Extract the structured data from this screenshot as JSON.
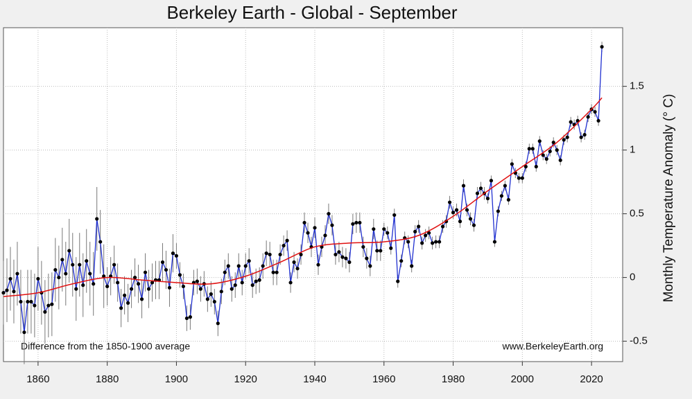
{
  "chart_data": {
    "type": "line",
    "title": "Berkeley Earth - Global - September",
    "y_label": "Monthly Temperature Anomaly (° C)",
    "annotations": [
      "Difference from the 1850-1900 average",
      "www.BerkeleyEarth.org"
    ],
    "xlim": [
      1850,
      2029
    ],
    "ylim": [
      -0.66,
      1.96
    ],
    "xticks": [
      1860,
      1880,
      1900,
      1920,
      1940,
      1960,
      1980,
      2000,
      2020
    ],
    "yticks": [
      -0.5,
      0,
      0.5,
      1,
      1.5
    ],
    "grid": true,
    "series": [
      {
        "color": "#1f2fd0",
        "marker_color": "#000000",
        "error_color": "#777777",
        "x": [
          1850,
          1851,
          1852,
          1853,
          1854,
          1855,
          1856,
          1857,
          1858,
          1859,
          1860,
          1861,
          1862,
          1863,
          1864,
          1865,
          1866,
          1867,
          1868,
          1869,
          1870,
          1871,
          1872,
          1873,
          1874,
          1875,
          1876,
          1877,
          1878,
          1879,
          1880,
          1881,
          1882,
          1883,
          1884,
          1885,
          1886,
          1887,
          1888,
          1889,
          1890,
          1891,
          1892,
          1893,
          1894,
          1895,
          1896,
          1897,
          1898,
          1899,
          1900,
          1901,
          1902,
          1903,
          1904,
          1905,
          1906,
          1907,
          1908,
          1909,
          1910,
          1911,
          1912,
          1913,
          1914,
          1915,
          1916,
          1917,
          1918,
          1919,
          1920,
          1921,
          1922,
          1923,
          1924,
          1925,
          1926,
          1927,
          1928,
          1929,
          1930,
          1931,
          1932,
          1933,
          1934,
          1935,
          1936,
          1937,
          1938,
          1939,
          1940,
          1941,
          1942,
          1943,
          1944,
          1945,
          1946,
          1947,
          1948,
          1949,
          1950,
          1951,
          1952,
          1953,
          1954,
          1955,
          1956,
          1957,
          1958,
          1959,
          1960,
          1961,
          1962,
          1963,
          1964,
          1965,
          1966,
          1967,
          1968,
          1969,
          1970,
          1971,
          1972,
          1973,
          1974,
          1975,
          1976,
          1977,
          1978,
          1979,
          1980,
          1981,
          1982,
          1983,
          1984,
          1985,
          1986,
          1987,
          1988,
          1989,
          1990,
          1991,
          1992,
          1993,
          1994,
          1995,
          1996,
          1997,
          1998,
          1999,
          2000,
          2001,
          2002,
          2003,
          2004,
          2005,
          2006,
          2007,
          2008,
          2009,
          2010,
          2011,
          2012,
          2013,
          2014,
          2015,
          2016,
          2017,
          2018,
          2019,
          2020,
          2021,
          2022,
          2023
        ],
        "values": [
          -0.12,
          -0.1,
          -0.01,
          -0.11,
          0.03,
          -0.19,
          -0.43,
          -0.19,
          -0.19,
          -0.22,
          -0.01,
          -0.12,
          -0.27,
          -0.22,
          -0.21,
          0.06,
          0.0,
          0.14,
          0.03,
          0.21,
          0.1,
          -0.09,
          0.1,
          -0.06,
          0.13,
          0.03,
          -0.05,
          0.46,
          0.28,
          0.01,
          -0.07,
          0.01,
          0.1,
          -0.04,
          -0.24,
          -0.14,
          -0.2,
          -0.09,
          0.0,
          -0.05,
          -0.17,
          0.04,
          -0.09,
          -0.04,
          -0.02,
          -0.02,
          0.12,
          0.06,
          -0.08,
          0.19,
          0.17,
          0.02,
          -0.07,
          -0.32,
          -0.31,
          -0.04,
          -0.03,
          -0.09,
          -0.05,
          -0.17,
          -0.13,
          -0.19,
          -0.36,
          -0.11,
          0.04,
          0.09,
          -0.09,
          -0.06,
          0.09,
          -0.04,
          0.09,
          0.13,
          -0.06,
          -0.03,
          -0.02,
          0.09,
          0.19,
          0.18,
          0.04,
          0.04,
          0.18,
          0.25,
          0.29,
          -0.04,
          0.12,
          0.07,
          0.18,
          0.43,
          0.35,
          0.24,
          0.39,
          0.1,
          0.24,
          0.33,
          0.5,
          0.41,
          0.18,
          0.2,
          0.16,
          0.15,
          0.12,
          0.42,
          0.43,
          0.43,
          0.24,
          0.15,
          0.09,
          0.38,
          0.21,
          0.21,
          0.38,
          0.35,
          0.23,
          0.49,
          -0.03,
          0.13,
          0.31,
          0.28,
          0.09,
          0.36,
          0.4,
          0.27,
          0.33,
          0.35,
          0.27,
          0.28,
          0.28,
          0.4,
          0.44,
          0.59,
          0.51,
          0.53,
          0.44,
          0.72,
          0.53,
          0.46,
          0.41,
          0.66,
          0.7,
          0.66,
          0.62,
          0.76,
          0.28,
          0.52,
          0.64,
          0.72,
          0.61,
          0.89,
          0.82,
          0.78,
          0.78,
          0.87,
          1.01,
          1.01,
          0.87,
          1.07,
          0.96,
          0.93,
          0.99,
          1.06,
          1.0,
          0.92,
          1.08,
          1.1,
          1.22,
          1.2,
          1.23,
          1.1,
          1.12,
          1.26,
          1.32,
          1.3,
          1.23,
          1.81
        ],
        "errors": [
          0.25,
          0.25,
          0.25,
          0.25,
          0.25,
          0.25,
          0.25,
          0.25,
          0.25,
          0.25,
          0.25,
          0.25,
          0.25,
          0.25,
          0.25,
          0.25,
          0.25,
          0.25,
          0.25,
          0.25,
          0.25,
          0.25,
          0.25,
          0.25,
          0.25,
          0.25,
          0.25,
          0.25,
          0.25,
          0.25,
          0.15,
          0.15,
          0.15,
          0.15,
          0.15,
          0.15,
          0.15,
          0.15,
          0.15,
          0.15,
          0.15,
          0.15,
          0.15,
          0.15,
          0.15,
          0.15,
          0.15,
          0.15,
          0.15,
          0.15,
          0.1,
          0.1,
          0.1,
          0.1,
          0.1,
          0.1,
          0.1,
          0.1,
          0.1,
          0.1,
          0.1,
          0.1,
          0.1,
          0.1,
          0.1,
          0.1,
          0.1,
          0.1,
          0.1,
          0.1,
          0.1,
          0.1,
          0.1,
          0.1,
          0.1,
          0.1,
          0.1,
          0.1,
          0.1,
          0.1,
          0.08,
          0.08,
          0.08,
          0.08,
          0.08,
          0.08,
          0.08,
          0.08,
          0.08,
          0.08,
          0.08,
          0.08,
          0.08,
          0.08,
          0.08,
          0.08,
          0.08,
          0.08,
          0.08,
          0.08,
          0.08,
          0.08,
          0.08,
          0.08,
          0.08,
          0.08,
          0.08,
          0.08,
          0.08,
          0.08,
          0.05,
          0.05,
          0.05,
          0.05,
          0.05,
          0.05,
          0.05,
          0.05,
          0.05,
          0.05,
          0.05,
          0.05,
          0.05,
          0.05,
          0.05,
          0.05,
          0.05,
          0.05,
          0.05,
          0.05,
          0.05,
          0.05,
          0.05,
          0.05,
          0.05,
          0.05,
          0.05,
          0.05,
          0.05,
          0.05,
          0.04,
          0.04,
          0.04,
          0.04,
          0.04,
          0.04,
          0.04,
          0.04,
          0.04,
          0.04,
          0.04,
          0.04,
          0.04,
          0.04,
          0.04,
          0.04,
          0.04,
          0.04,
          0.04,
          0.04,
          0.04,
          0.04,
          0.04,
          0.04,
          0.04,
          0.04,
          0.04,
          0.04,
          0.04,
          0.04,
          0.04,
          0.04,
          0.04,
          0.04
        ]
      },
      {
        "color": "#e01010",
        "smooth": true,
        "x": [
          1850,
          1860,
          1870,
          1880,
          1890,
          1900,
          1910,
          1920,
          1930,
          1940,
          1950,
          1960,
          1970,
          1980,
          1990,
          2000,
          2010,
          2020,
          2023
        ],
        "values": [
          -0.15,
          -0.12,
          -0.05,
          0.0,
          -0.02,
          -0.04,
          -0.05,
          0.01,
          0.12,
          0.24,
          0.27,
          0.28,
          0.33,
          0.48,
          0.68,
          0.87,
          1.06,
          1.32,
          1.41
        ]
      }
    ]
  }
}
